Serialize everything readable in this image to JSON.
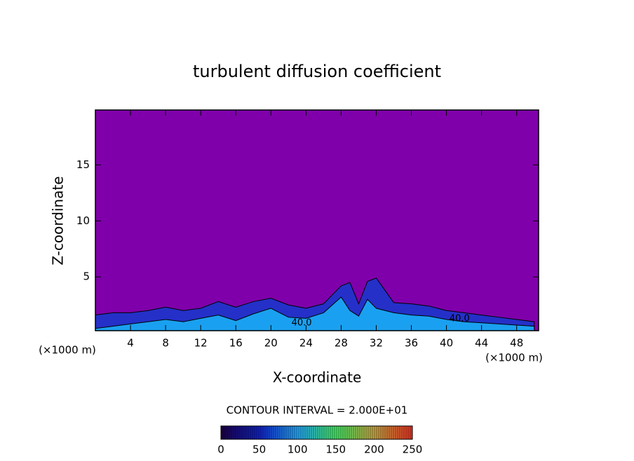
{
  "chart_data": {
    "type": "contour",
    "title": "turbulent diffusion coefficient",
    "xlabel": "X-coordinate",
    "ylabel": "Z-coordinate",
    "x_unit": "(×1000 m)",
    "background": "#7f00aa",
    "xlim": [
      0,
      50.5
    ],
    "xticks": [
      4,
      8,
      12,
      16,
      20,
      24,
      28,
      32,
      36,
      40,
      44,
      48
    ],
    "ylim": [
      0.2,
      19.9
    ],
    "yticks": [
      5,
      10,
      15
    ],
    "x": [
      0,
      2,
      4,
      6,
      8,
      10,
      12,
      14,
      16,
      18,
      20,
      22,
      24,
      26,
      28,
      29,
      30,
      31,
      32,
      34,
      36,
      38,
      40,
      42,
      44,
      46,
      48,
      50
    ],
    "series": [
      {
        "color": "#2430c8",
        "values": [
          1.6,
          1.8,
          1.8,
          2.0,
          2.3,
          2.0,
          2.2,
          2.8,
          2.3,
          2.8,
          3.1,
          2.5,
          2.2,
          2.6,
          4.2,
          4.5,
          2.6,
          4.6,
          4.9,
          2.7,
          2.6,
          2.4,
          2.0,
          1.8,
          1.6,
          1.4,
          1.2,
          1.0
        ]
      },
      {
        "color": "#1aa0f0",
        "values": [
          0.4,
          0.6,
          0.8,
          1.0,
          1.2,
          1.0,
          1.3,
          1.6,
          1.1,
          1.7,
          2.2,
          1.4,
          1.3,
          1.8,
          3.2,
          2.0,
          1.5,
          3.0,
          2.2,
          1.8,
          1.6,
          1.5,
          1.2,
          1.0,
          0.9,
          0.8,
          0.7,
          0.6
        ]
      }
    ],
    "annotations": [
      {
        "text": "40.0",
        "x": 23.5,
        "y": 0.9
      },
      {
        "text": "40.0",
        "x": 41.5,
        "y": 1.25
      }
    ],
    "colorbar": {
      "label": "CONTOUR INTERVAL = 2.000E+01",
      "lim": [
        0,
        250
      ],
      "ticks": [
        0,
        50,
        100,
        150,
        200,
        250
      ],
      "colors": [
        "#1a0040",
        "#1020c0",
        "#20a0f0",
        "#40e060",
        "#c0a040",
        "#e03020"
      ]
    }
  }
}
